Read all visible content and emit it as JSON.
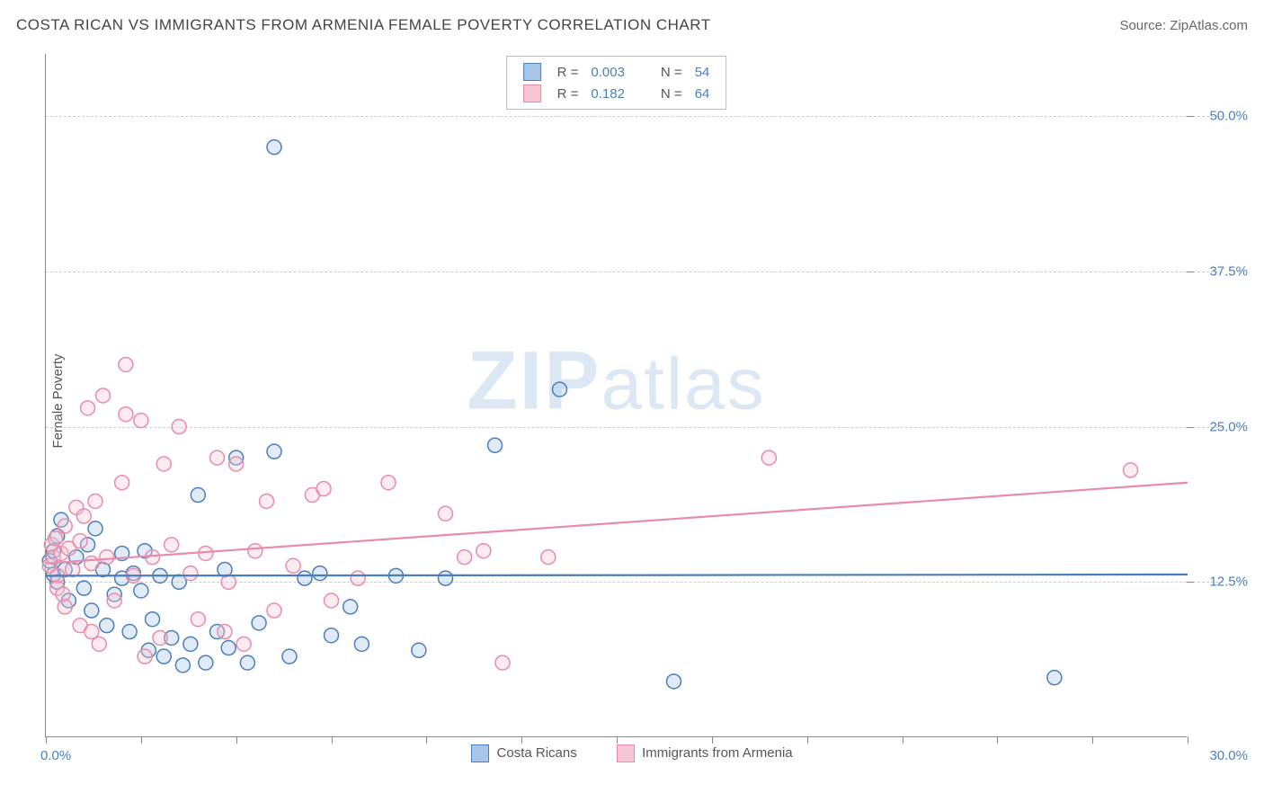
{
  "title": "COSTA RICAN VS IMMIGRANTS FROM ARMENIA FEMALE POVERTY CORRELATION CHART",
  "source": "Source: ZipAtlas.com",
  "watermark_main": "ZIP",
  "watermark_sub": "atlas",
  "y_axis_title": "Female Poverty",
  "chart": {
    "type": "scatter",
    "xlim": [
      0,
      30
    ],
    "ylim": [
      0,
      55
    ],
    "x_ticks": [
      0,
      2.5,
      5,
      7.5,
      10,
      12.5,
      15,
      17.5,
      20,
      22.5,
      25,
      27.5,
      30
    ],
    "x_tick_labels_shown": {
      "0": "0.0%",
      "30": "30.0%"
    },
    "y_gridlines": [
      12.5,
      25,
      37.5,
      50
    ],
    "y_labels": {
      "12.5": "12.5%",
      "25": "25.0%",
      "37.5": "37.5%",
      "50": "50.0%"
    },
    "background_color": "#ffffff",
    "grid_color": "#cccccc",
    "axis_color": "#888888",
    "label_color": "#4a7ebb",
    "marker_radius": 8,
    "marker_stroke_width": 1.5,
    "marker_fill_opacity": 0.35
  },
  "series": [
    {
      "key": "costa_ricans",
      "label": "Costa Ricans",
      "color_stroke": "#4a7ebb",
      "color_fill": "#a9c6e8",
      "R": "0.003",
      "N": "54",
      "trend": {
        "x1": 0,
        "y1": 13.0,
        "x2": 30,
        "y2": 13.1
      },
      "points": [
        [
          0.1,
          14.2
        ],
        [
          0.2,
          13.1
        ],
        [
          0.2,
          15.0
        ],
        [
          0.3,
          16.2
        ],
        [
          0.3,
          12.5
        ],
        [
          0.4,
          17.5
        ],
        [
          0.5,
          13.5
        ],
        [
          0.6,
          11.0
        ],
        [
          0.8,
          14.5
        ],
        [
          1.0,
          12.0
        ],
        [
          1.1,
          15.5
        ],
        [
          1.2,
          10.2
        ],
        [
          1.3,
          16.8
        ],
        [
          1.5,
          13.5
        ],
        [
          1.6,
          9.0
        ],
        [
          1.8,
          11.5
        ],
        [
          2.0,
          12.8
        ],
        [
          2.0,
          14.8
        ],
        [
          2.2,
          8.5
        ],
        [
          2.3,
          13.2
        ],
        [
          2.5,
          11.8
        ],
        [
          2.6,
          15.0
        ],
        [
          2.7,
          7.0
        ],
        [
          2.8,
          9.5
        ],
        [
          3.0,
          13.0
        ],
        [
          3.1,
          6.5
        ],
        [
          3.3,
          8.0
        ],
        [
          3.5,
          12.5
        ],
        [
          3.6,
          5.8
        ],
        [
          3.8,
          7.5
        ],
        [
          4.0,
          19.5
        ],
        [
          4.2,
          6.0
        ],
        [
          4.5,
          8.5
        ],
        [
          4.7,
          13.5
        ],
        [
          4.8,
          7.2
        ],
        [
          5.0,
          22.5
        ],
        [
          5.3,
          6.0
        ],
        [
          5.6,
          9.2
        ],
        [
          6.0,
          23.0
        ],
        [
          6.0,
          47.5
        ],
        [
          6.4,
          6.5
        ],
        [
          6.8,
          12.8
        ],
        [
          7.2,
          13.2
        ],
        [
          7.5,
          8.2
        ],
        [
          8.0,
          10.5
        ],
        [
          8.3,
          7.5
        ],
        [
          9.2,
          13.0
        ],
        [
          9.8,
          7.0
        ],
        [
          10.5,
          12.8
        ],
        [
          11.8,
          23.5
        ],
        [
          13.5,
          28.0
        ],
        [
          16.5,
          4.5
        ],
        [
          26.5,
          4.8
        ]
      ]
    },
    {
      "key": "immigrants_armenia",
      "label": "Immigrants from Armenia",
      "color_stroke": "#e88ba8",
      "color_fill": "#f7c5d4",
      "R": "0.182",
      "N": "64",
      "trend": {
        "x1": 0,
        "y1": 14.0,
        "x2": 30,
        "y2": 20.5
      },
      "points": [
        [
          0.1,
          13.8
        ],
        [
          0.15,
          15.5
        ],
        [
          0.2,
          14.5
        ],
        [
          0.25,
          16.0
        ],
        [
          0.3,
          13.0
        ],
        [
          0.3,
          12.0
        ],
        [
          0.4,
          14.8
        ],
        [
          0.45,
          11.5
        ],
        [
          0.5,
          17.0
        ],
        [
          0.5,
          10.5
        ],
        [
          0.6,
          15.2
        ],
        [
          0.7,
          13.5
        ],
        [
          0.8,
          18.5
        ],
        [
          0.9,
          9.0
        ],
        [
          0.9,
          15.8
        ],
        [
          1.0,
          17.8
        ],
        [
          1.1,
          26.5
        ],
        [
          1.2,
          8.5
        ],
        [
          1.2,
          14.0
        ],
        [
          1.3,
          19.0
        ],
        [
          1.4,
          7.5
        ],
        [
          1.5,
          27.5
        ],
        [
          1.6,
          14.5
        ],
        [
          1.8,
          11.0
        ],
        [
          2.0,
          20.5
        ],
        [
          2.1,
          26.0
        ],
        [
          2.1,
          30.0
        ],
        [
          2.3,
          13.0
        ],
        [
          2.5,
          25.5
        ],
        [
          2.6,
          6.5
        ],
        [
          2.8,
          14.5
        ],
        [
          3.0,
          8.0
        ],
        [
          3.1,
          22.0
        ],
        [
          3.3,
          15.5
        ],
        [
          3.5,
          25.0
        ],
        [
          3.8,
          13.2
        ],
        [
          4.0,
          9.5
        ],
        [
          4.2,
          14.8
        ],
        [
          4.5,
          22.5
        ],
        [
          4.7,
          8.5
        ],
        [
          4.8,
          12.5
        ],
        [
          5.0,
          22.0
        ],
        [
          5.2,
          7.5
        ],
        [
          5.5,
          15.0
        ],
        [
          5.8,
          19.0
        ],
        [
          6.0,
          10.2
        ],
        [
          6.5,
          13.8
        ],
        [
          7.0,
          19.5
        ],
        [
          7.3,
          20.0
        ],
        [
          7.5,
          11.0
        ],
        [
          8.2,
          12.8
        ],
        [
          9.0,
          20.5
        ],
        [
          10.5,
          18.0
        ],
        [
          11.0,
          14.5
        ],
        [
          11.5,
          15.0
        ],
        [
          12.0,
          6.0
        ],
        [
          13.2,
          14.5
        ],
        [
          19.0,
          22.5
        ],
        [
          28.5,
          21.5
        ]
      ]
    }
  ],
  "legend_top": {
    "r_label": "R =",
    "n_label": "N ="
  },
  "legend_bottom_label_a": "Costa Ricans",
  "legend_bottom_label_b": "Immigrants from Armenia"
}
